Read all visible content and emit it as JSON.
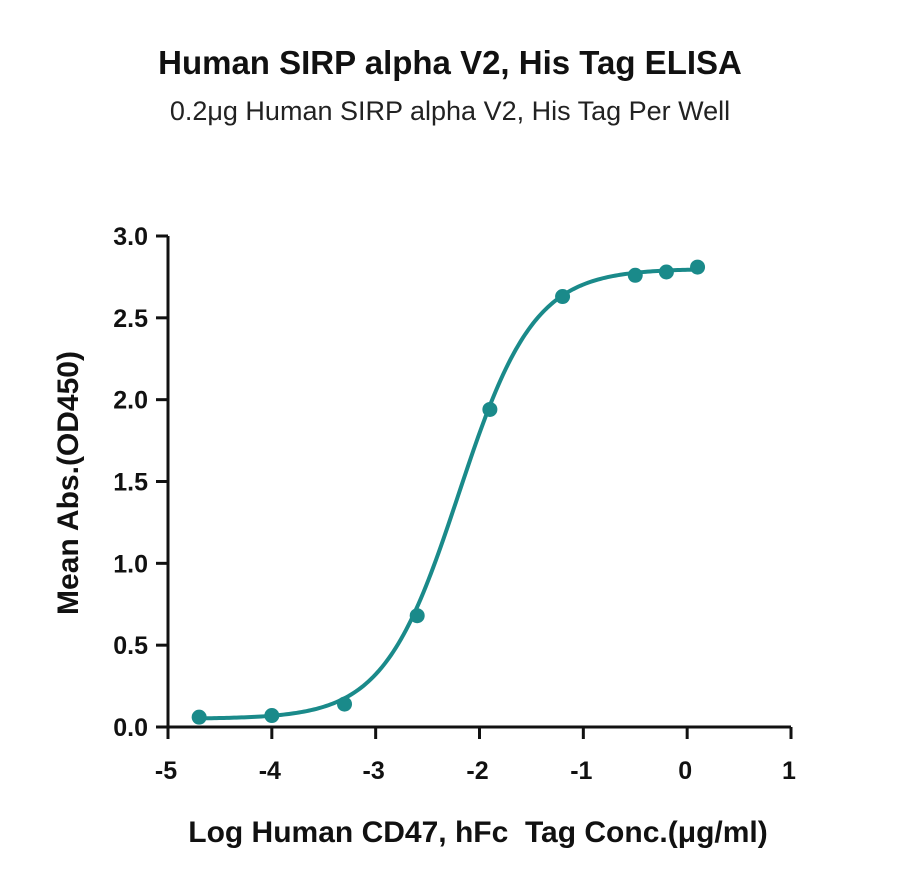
{
  "chart_data": {
    "type": "scatter",
    "title": "Human SIRP alpha V2, His Tag ELISA",
    "subtitle": "0.2μg Human SIRP alpha V2, His Tag Per Well",
    "xlabel": "Log Human CD47, hFc  Tag Conc.(μg/ml)",
    "ylabel": "Mean Abs.(OD450)",
    "xlim": [
      -5,
      1
    ],
    "ylim": [
      0,
      3
    ],
    "xticks": [
      "-5",
      "-4",
      "-3",
      "-2",
      "-1",
      "0",
      "1"
    ],
    "yticks": [
      "0.0",
      "0.5",
      "1.0",
      "1.5",
      "2.0",
      "2.5",
      "3.0"
    ],
    "grid": false,
    "color": "#1a8a8a",
    "series": [
      {
        "points": [
          {
            "x": -4.7,
            "y": 0.06
          },
          {
            "x": -4.0,
            "y": 0.07
          },
          {
            "x": -3.3,
            "y": 0.14
          },
          {
            "x": -2.6,
            "y": 0.68
          },
          {
            "x": -1.9,
            "y": 1.94
          },
          {
            "x": -1.2,
            "y": 2.63
          },
          {
            "x": -0.5,
            "y": 2.76
          },
          {
            "x": -0.2,
            "y": 2.78
          },
          {
            "x": 0.1,
            "y": 2.81
          }
        ],
        "fit": {
          "model": "4PL",
          "bottom": 0.05,
          "top": 2.8,
          "logEC50": -2.2,
          "hill": 1.2
        }
      }
    ]
  }
}
